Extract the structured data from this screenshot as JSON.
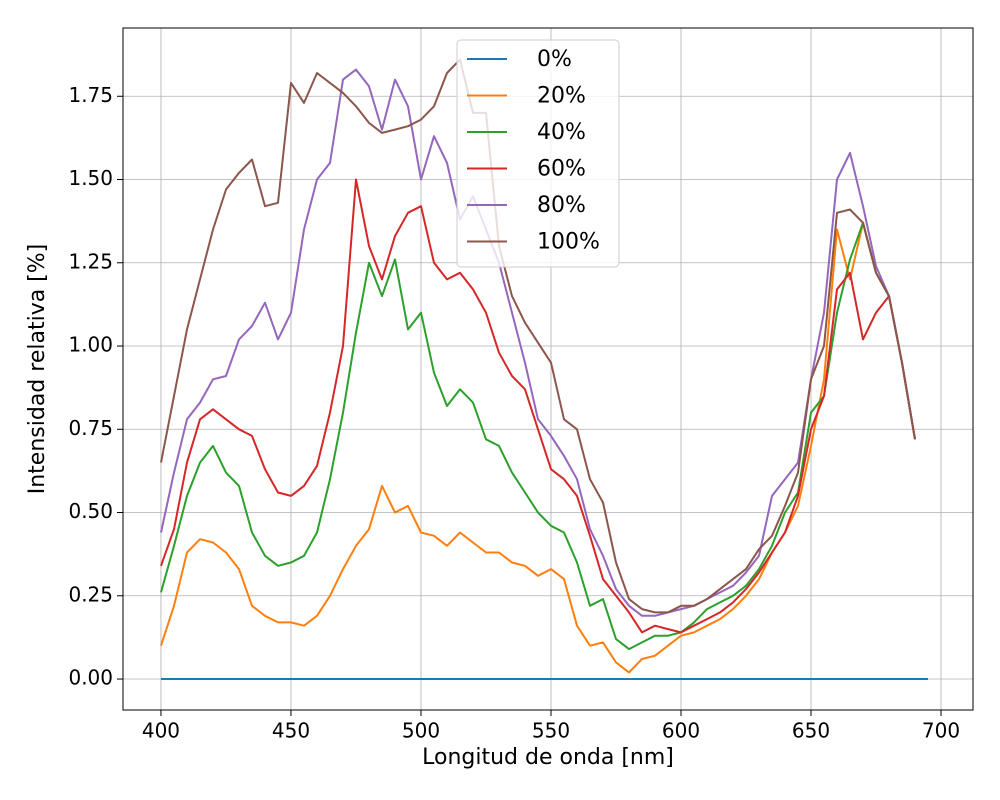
{
  "chart_data": {
    "type": "line",
    "xlabel": "Longitud de onda [nm]",
    "ylabel": "Intensidad relativa [%]",
    "x": [
      400,
      405,
      410,
      415,
      420,
      425,
      430,
      435,
      440,
      445,
      450,
      455,
      460,
      465,
      470,
      475,
      480,
      485,
      490,
      495,
      500,
      505,
      510,
      515,
      520,
      525,
      530,
      535,
      540,
      545,
      550,
      555,
      560,
      565,
      570,
      575,
      580,
      585,
      590,
      595,
      600,
      605,
      610,
      615,
      620,
      625,
      630,
      635,
      640,
      645,
      650,
      655,
      660,
      665,
      670,
      675,
      680,
      685,
      690,
      695
    ],
    "series": [
      {
        "name": "0%",
        "color": "#1f77b4",
        "values": [
          0,
          0,
          0,
          0,
          0,
          0,
          0,
          0,
          0,
          0,
          0,
          0,
          0,
          0,
          0,
          0,
          0,
          0,
          0,
          0,
          0,
          0,
          0,
          0,
          0,
          0,
          0,
          0,
          0,
          0,
          0,
          0,
          0,
          0,
          0,
          0,
          0,
          0,
          0,
          0,
          0,
          0,
          0,
          0,
          0,
          0,
          0,
          0,
          0,
          0,
          0,
          0,
          0,
          0,
          0,
          0,
          0,
          0,
          0,
          0
        ]
      },
      {
        "name": "20%",
        "color": "#ff7f0e",
        "values": [
          0.1,
          0.22,
          0.38,
          0.42,
          0.41,
          0.38,
          0.33,
          0.22,
          0.19,
          0.17,
          0.17,
          0.16,
          0.19,
          0.25,
          0.33,
          0.4,
          0.45,
          0.58,
          0.5,
          0.52,
          0.44,
          0.43,
          0.4,
          0.44,
          0.41,
          0.38,
          0.38,
          0.35,
          0.34,
          0.31,
          0.33,
          0.3,
          0.16,
          0.1,
          0.11,
          0.05,
          0.02,
          0.06,
          0.07,
          0.1,
          0.13,
          0.14,
          0.16,
          0.18,
          0.21,
          0.25,
          0.3,
          0.38,
          0.44,
          0.52,
          0.7,
          0.9,
          1.35,
          1.2,
          1.37,
          1.22,
          1.15,
          0.95,
          0.72,
          null
        ]
      },
      {
        "name": "40%",
        "color": "#2ca02c",
        "values": [
          0.26,
          0.4,
          0.55,
          0.65,
          0.7,
          0.62,
          0.58,
          0.44,
          0.37,
          0.34,
          0.35,
          0.37,
          0.44,
          0.6,
          0.8,
          1.04,
          1.25,
          1.15,
          1.26,
          1.05,
          1.1,
          0.92,
          0.82,
          0.87,
          0.83,
          0.72,
          0.7,
          0.62,
          0.56,
          0.5,
          0.46,
          0.44,
          0.35,
          0.22,
          0.24,
          0.12,
          0.09,
          0.11,
          0.13,
          0.13,
          0.14,
          0.17,
          0.21,
          0.23,
          0.25,
          0.28,
          0.33,
          0.4,
          0.5,
          0.56,
          0.8,
          0.85,
          1.1,
          1.26,
          1.37,
          1.22,
          1.15,
          0.95,
          0.72,
          null
        ]
      },
      {
        "name": "60%",
        "color": "#d62728",
        "values": [
          0.34,
          0.45,
          0.65,
          0.78,
          0.81,
          0.78,
          0.75,
          0.73,
          0.63,
          0.56,
          0.55,
          0.58,
          0.64,
          0.8,
          1.0,
          1.5,
          1.3,
          1.2,
          1.33,
          1.4,
          1.42,
          1.25,
          1.2,
          1.22,
          1.17,
          1.1,
          0.98,
          0.91,
          0.87,
          0.75,
          0.63,
          0.6,
          0.55,
          0.43,
          0.3,
          0.25,
          0.2,
          0.14,
          0.16,
          0.15,
          0.14,
          0.16,
          0.18,
          0.2,
          0.23,
          0.27,
          0.32,
          0.38,
          0.44,
          0.55,
          0.75,
          0.85,
          1.17,
          1.22,
          1.02,
          1.1,
          1.15,
          0.95,
          0.72,
          null
        ]
      },
      {
        "name": "80%",
        "color": "#9467bd",
        "values": [
          0.44,
          0.62,
          0.78,
          0.83,
          0.9,
          0.91,
          1.02,
          1.06,
          1.13,
          1.02,
          1.1,
          1.35,
          1.5,
          1.55,
          1.8,
          1.83,
          1.78,
          1.65,
          1.8,
          1.72,
          1.5,
          1.63,
          1.55,
          1.38,
          1.45,
          1.35,
          1.25,
          1.1,
          0.95,
          0.78,
          0.73,
          0.67,
          0.6,
          0.45,
          0.37,
          0.27,
          0.22,
          0.19,
          0.19,
          0.2,
          0.21,
          0.22,
          0.24,
          0.26,
          0.28,
          0.32,
          0.37,
          0.55,
          0.6,
          0.65,
          0.9,
          1.1,
          1.5,
          1.58,
          1.42,
          1.24,
          1.15,
          0.95,
          0.72,
          null
        ]
      },
      {
        "name": "100%",
        "color": "#8c564b",
        "values": [
          0.65,
          0.85,
          1.05,
          1.2,
          1.35,
          1.47,
          1.52,
          1.56,
          1.42,
          1.43,
          1.79,
          1.73,
          1.82,
          1.79,
          1.76,
          1.72,
          1.67,
          1.64,
          1.65,
          1.66,
          1.68,
          1.72,
          1.82,
          1.86,
          1.7,
          1.7,
          1.3,
          1.15,
          1.07,
          1.01,
          0.95,
          0.78,
          0.75,
          0.6,
          0.53,
          0.35,
          0.24,
          0.21,
          0.2,
          0.2,
          0.22,
          0.22,
          0.24,
          0.27,
          0.3,
          0.33,
          0.39,
          0.43,
          0.52,
          0.62,
          0.9,
          1.0,
          1.4,
          1.41,
          1.37,
          1.22,
          1.15,
          0.95,
          0.72,
          null
        ]
      }
    ],
    "xlim": [
      385.4,
      712.3
    ],
    "xticks": [
      400,
      450,
      500,
      550,
      600,
      650,
      700
    ],
    "ylim": [
      -0.093,
      1.955
    ],
    "yticks": [
      {
        "value": 0,
        "label": "0.00"
      },
      {
        "value": 0.25,
        "label": "0.25"
      },
      {
        "value": 0.5,
        "label": "0.50"
      },
      {
        "value": 0.75,
        "label": "0.75"
      },
      {
        "value": 1,
        "label": "1.00"
      },
      {
        "value": 1.25,
        "label": "1.25"
      },
      {
        "value": 1.5,
        "label": "1.50"
      },
      {
        "value": 1.75,
        "label": "1.75"
      }
    ],
    "grid": true,
    "legend": "upper center"
  }
}
